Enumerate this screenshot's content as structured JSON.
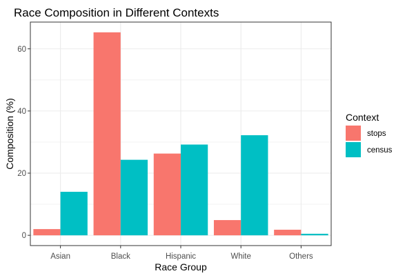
{
  "chart_data": {
    "type": "bar",
    "title": "Race Composition in Different Contexts",
    "xlabel": "Race Group",
    "ylabel": "Composition (%)",
    "categories": [
      "Asian",
      "Black",
      "Hispanic",
      "White",
      "Others"
    ],
    "series": [
      {
        "name": "stops",
        "values": [
          2.0,
          65.3,
          26.3,
          4.9,
          1.8
        ],
        "color": "#F8766D"
      },
      {
        "name": "census",
        "values": [
          14.0,
          24.3,
          29.2,
          32.2,
          0.5
        ],
        "color": "#00BFC4"
      }
    ],
    "ylim": [
      -3.3,
      68.6
    ],
    "yticks": [
      0,
      20,
      40,
      60
    ],
    "grid": true,
    "legend": {
      "title": "Context",
      "position": "right"
    }
  }
}
